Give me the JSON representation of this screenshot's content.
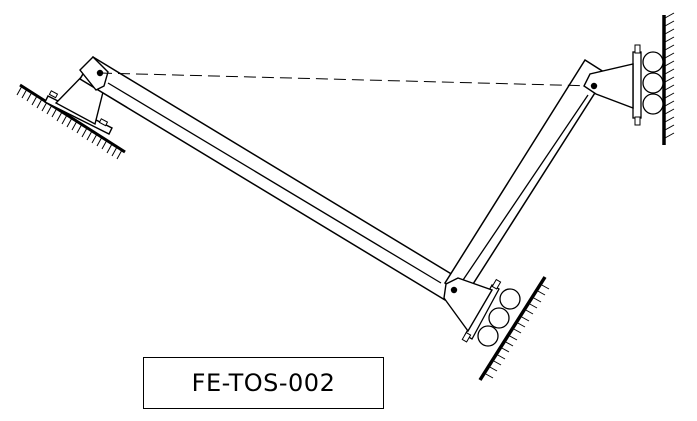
{
  "label": "FE-TOS-002",
  "colors": {
    "line": "#000000",
    "background": "#ffffff"
  }
}
